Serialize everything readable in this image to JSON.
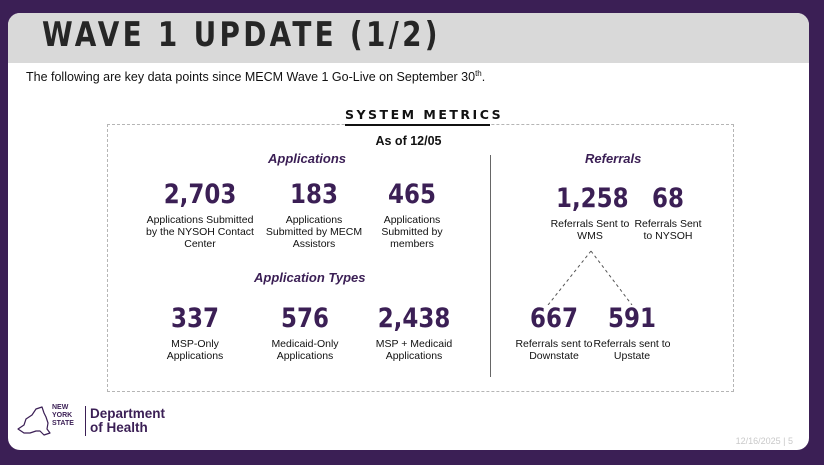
{
  "slide": {
    "title": "WAVE 1 UPDATE (1/2)",
    "intro_text": "The following are key data points since MECM Wave 1 Go-Live on September 30",
    "intro_sup": "th",
    "intro_end": "."
  },
  "metrics": {
    "section_label": "SYSTEM METRICS",
    "as_of": "As of 12/05",
    "applications": {
      "heading": "Applications",
      "items": [
        {
          "value": "2,703",
          "label": "Applications Submitted by the NYSOH Contact Center"
        },
        {
          "value": "183",
          "label": "Applications Submitted by MECM Assistors"
        },
        {
          "value": "465",
          "label": "Applications Submitted by members"
        }
      ]
    },
    "application_types": {
      "heading": "Application Types",
      "items": [
        {
          "value": "337",
          "label": "MSP-Only Applications"
        },
        {
          "value": "576",
          "label": "Medicaid-Only Applications"
        },
        {
          "value": "2,438",
          "label": "MSP + Medicaid Applications"
        }
      ]
    },
    "referrals": {
      "heading": "Referrals",
      "items": [
        {
          "value": "1,258",
          "label": "Referrals Sent to WMS"
        },
        {
          "value": "68",
          "label": "Referrals Sent to NYSOH"
        },
        {
          "value": "667",
          "label": "Referrals sent to Downstate"
        },
        {
          "value": "591",
          "label": "Referrals sent to Upstate"
        }
      ]
    }
  },
  "footer": {
    "state_line1": "NEW",
    "state_line2": "YORK",
    "state_line3": "STATE",
    "dept_line1": "Department",
    "dept_line2": "of Health",
    "page_info": "12/16/2025 | 5"
  },
  "colors": {
    "brand_purple": "#3b1f55",
    "title_bar": "#d9d9d9"
  },
  "icons": [
    "new-york-state-map-icon"
  ]
}
